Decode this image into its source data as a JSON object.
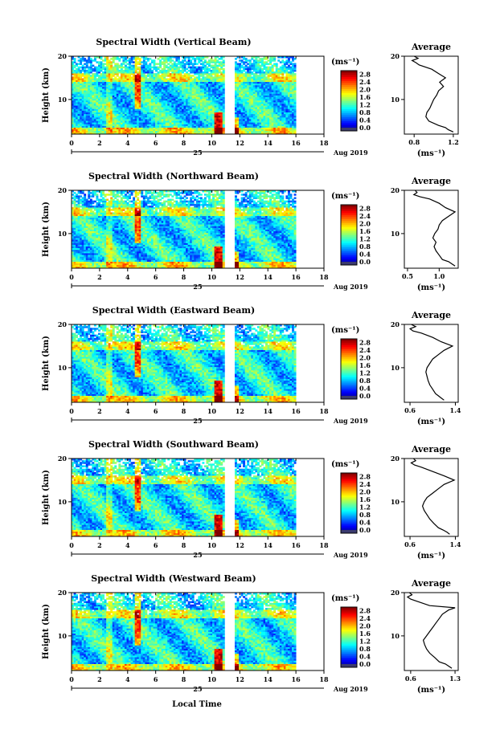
{
  "xlabel_common": "Local Time",
  "chart_data": [
    {
      "type": "heatmap",
      "title": "Spectral Width (Vertical Beam)",
      "xlabel": "",
      "ylabel": "Height (km)",
      "xlim": [
        0,
        18
      ],
      "ylim": [
        2,
        20
      ],
      "xticks": [
        0,
        2,
        4,
        6,
        8,
        10,
        12,
        14,
        16,
        18
      ],
      "yticks": [
        10,
        20
      ],
      "date_day": "25",
      "date_month_year": "Aug 2019",
      "colorbar": {
        "unit": "(ms⁻¹)",
        "ticks": [
          "0.0",
          "0.4",
          "0.8",
          "1.2",
          "1.6",
          "2.0",
          "2.4",
          "2.8"
        ],
        "range": [
          0,
          3.0
        ]
      },
      "data_gap_hours": [
        10.9,
        11.6
      ],
      "data_end_hour": 16.0,
      "average": {
        "title": "Average",
        "xlabel": "(ms⁻¹)",
        "xticks": [
          0.8,
          1.2
        ],
        "xlim": [
          0.7,
          1.25
        ],
        "yticks": [
          10,
          20
        ],
        "ylim": [
          2,
          20
        ],
        "heights": [
          2.5,
          3,
          3.5,
          4,
          5,
          6,
          7,
          8,
          9,
          10,
          11,
          12,
          13,
          14,
          15,
          16,
          17,
          18,
          18.5,
          19,
          19.5,
          20
        ],
        "values": [
          1.2,
          1.15,
          1.12,
          1.05,
          0.95,
          0.92,
          0.93,
          0.96,
          0.98,
          1.0,
          1.03,
          1.05,
          1.1,
          1.06,
          1.12,
          1.05,
          0.98,
          0.85,
          0.82,
          0.78,
          0.84,
          0.8
        ]
      }
    },
    {
      "type": "heatmap",
      "title": "Spectral Width (Northward Beam)",
      "xlabel": "",
      "ylabel": "Height (km)",
      "xlim": [
        0,
        18
      ],
      "ylim": [
        2,
        20
      ],
      "xticks": [
        0,
        2,
        4,
        6,
        8,
        10,
        12,
        14,
        16,
        18
      ],
      "yticks": [
        10,
        20
      ],
      "date_day": "25",
      "date_month_year": "Aug 2019",
      "colorbar": {
        "unit": "(ms⁻¹)",
        "ticks": [
          "0.0",
          "0.4",
          "0.8",
          "1.2",
          "1.6",
          "2.0",
          "2.4",
          "2.8"
        ],
        "range": [
          0,
          3.0
        ]
      },
      "data_gap_hours": [
        10.9,
        11.6
      ],
      "data_end_hour": 16.0,
      "average": {
        "title": "Average",
        "xlabel": "(ms⁻¹)",
        "xticks": [
          0.5,
          1.0
        ],
        "xlim": [
          0.45,
          1.3
        ],
        "yticks": [
          10,
          20
        ],
        "ylim": [
          2,
          20
        ],
        "heights": [
          2.5,
          3,
          3.5,
          4,
          5,
          6,
          7,
          8,
          9,
          10,
          11,
          12,
          13,
          14,
          15,
          16,
          17,
          18,
          18.5,
          19,
          19.5,
          20
        ],
        "values": [
          1.25,
          1.2,
          1.15,
          1.05,
          1.0,
          0.95,
          0.92,
          0.95,
          0.9,
          0.93,
          0.98,
          1.0,
          1.05,
          1.15,
          1.25,
          1.1,
          1.0,
          0.85,
          0.7,
          0.6,
          0.65,
          0.62
        ]
      }
    },
    {
      "type": "heatmap",
      "title": "Spectral Width (Eastward Beam)",
      "xlabel": "",
      "ylabel": "Height (km)",
      "xlim": [
        0,
        18
      ],
      "ylim": [
        2,
        20
      ],
      "xticks": [
        0,
        2,
        4,
        6,
        8,
        10,
        12,
        14,
        16,
        18
      ],
      "yticks": [
        10,
        20
      ],
      "date_day": "25",
      "date_month_year": "Aug 2019",
      "colorbar": {
        "unit": "(ms⁻¹)",
        "ticks": [
          "0.0",
          "0.4",
          "0.8",
          "1.2",
          "1.6",
          "2.0",
          "2.4",
          "2.8"
        ],
        "range": [
          0,
          3.0
        ]
      },
      "data_gap_hours": [
        10.9,
        11.6
      ],
      "data_end_hour": 16.0,
      "average": {
        "title": "Average",
        "xlabel": "(ms⁻¹)",
        "xticks": [
          0.6,
          1.4
        ],
        "xlim": [
          0.5,
          1.45
        ],
        "yticks": [
          10,
          20
        ],
        "ylim": [
          2,
          20
        ],
        "heights": [
          2.5,
          3,
          3.5,
          4,
          5,
          6,
          7,
          8,
          9,
          10,
          11,
          12,
          13,
          14,
          15,
          16,
          17,
          18,
          18.5,
          19,
          19.5,
          20
        ],
        "values": [
          1.2,
          1.15,
          1.1,
          1.05,
          1.0,
          0.95,
          0.92,
          0.9,
          0.88,
          0.9,
          0.95,
          1.0,
          1.1,
          1.2,
          1.35,
          1.15,
          1.0,
          0.8,
          0.65,
          0.6,
          0.7,
          0.62
        ]
      }
    },
    {
      "type": "heatmap",
      "title": "Spectral Width (Southward Beam)",
      "xlabel": "",
      "ylabel": "Height (km)",
      "xlim": [
        0,
        18
      ],
      "ylim": [
        2,
        20
      ],
      "xticks": [
        0,
        2,
        4,
        6,
        8,
        10,
        12,
        14,
        16,
        18
      ],
      "yticks": [
        10,
        20
      ],
      "date_day": "25",
      "date_month_year": "Aug 2019",
      "colorbar": {
        "unit": "(ms⁻¹)",
        "ticks": [
          "0.0",
          "0.4",
          "0.8",
          "1.2",
          "1.6",
          "2.0",
          "2.4",
          "2.8"
        ],
        "range": [
          0,
          3.0
        ]
      },
      "data_gap_hours": [
        10.9,
        11.6
      ],
      "data_end_hour": 16.0,
      "average": {
        "title": "Average",
        "xlabel": "(ms⁻¹)",
        "xticks": [
          0.6,
          1.4
        ],
        "xlim": [
          0.5,
          1.45
        ],
        "yticks": [
          10,
          20
        ],
        "ylim": [
          2,
          20
        ],
        "heights": [
          2.5,
          3,
          3.5,
          4,
          5,
          6,
          7,
          8,
          9,
          10,
          11,
          12,
          13,
          14,
          15,
          16,
          17,
          18,
          18.5,
          19,
          19.5,
          20
        ],
        "values": [
          1.3,
          1.25,
          1.18,
          1.1,
          1.02,
          0.95,
          0.9,
          0.85,
          0.82,
          0.85,
          0.9,
          1.0,
          1.1,
          1.2,
          1.38,
          1.2,
          1.0,
          0.8,
          0.68,
          0.62,
          0.7,
          0.66
        ]
      }
    },
    {
      "type": "heatmap",
      "title": "Spectral Width (Westward Beam)",
      "xlabel": "",
      "ylabel": "Height (km)",
      "xlim": [
        0,
        18
      ],
      "ylim": [
        2,
        20
      ],
      "xticks": [
        0,
        2,
        4,
        6,
        8,
        10,
        12,
        14,
        16,
        18
      ],
      "yticks": [
        10,
        20
      ],
      "date_day": "25",
      "date_month_year": "Aug 2019",
      "colorbar": {
        "unit": "(ms⁻¹)",
        "ticks": [
          "0.0",
          "0.4",
          "0.8",
          "1.2",
          "1.6",
          "2.0",
          "2.4",
          "2.8"
        ],
        "range": [
          0,
          3.0
        ]
      },
      "data_gap_hours": [
        10.9,
        11.6
      ],
      "data_end_hour": 16.0,
      "average": {
        "title": "Average",
        "xlabel": "(ms⁻¹)",
        "xticks": [
          0.6,
          1.3
        ],
        "xlim": [
          0.5,
          1.35
        ],
        "yticks": [
          10,
          20
        ],
        "ylim": [
          2,
          20
        ],
        "heights": [
          2.5,
          3,
          3.5,
          4,
          5,
          6,
          7,
          8,
          9,
          10,
          11,
          12,
          13,
          14,
          15,
          16,
          16.5,
          17,
          18,
          18.5,
          19,
          19.5,
          20
        ],
        "values": [
          1.25,
          1.2,
          1.15,
          1.05,
          0.98,
          0.9,
          0.85,
          0.82,
          0.8,
          0.85,
          0.9,
          0.95,
          1.0,
          1.05,
          1.1,
          1.2,
          1.3,
          0.9,
          0.7,
          0.6,
          0.55,
          0.62,
          0.58
        ]
      }
    }
  ]
}
